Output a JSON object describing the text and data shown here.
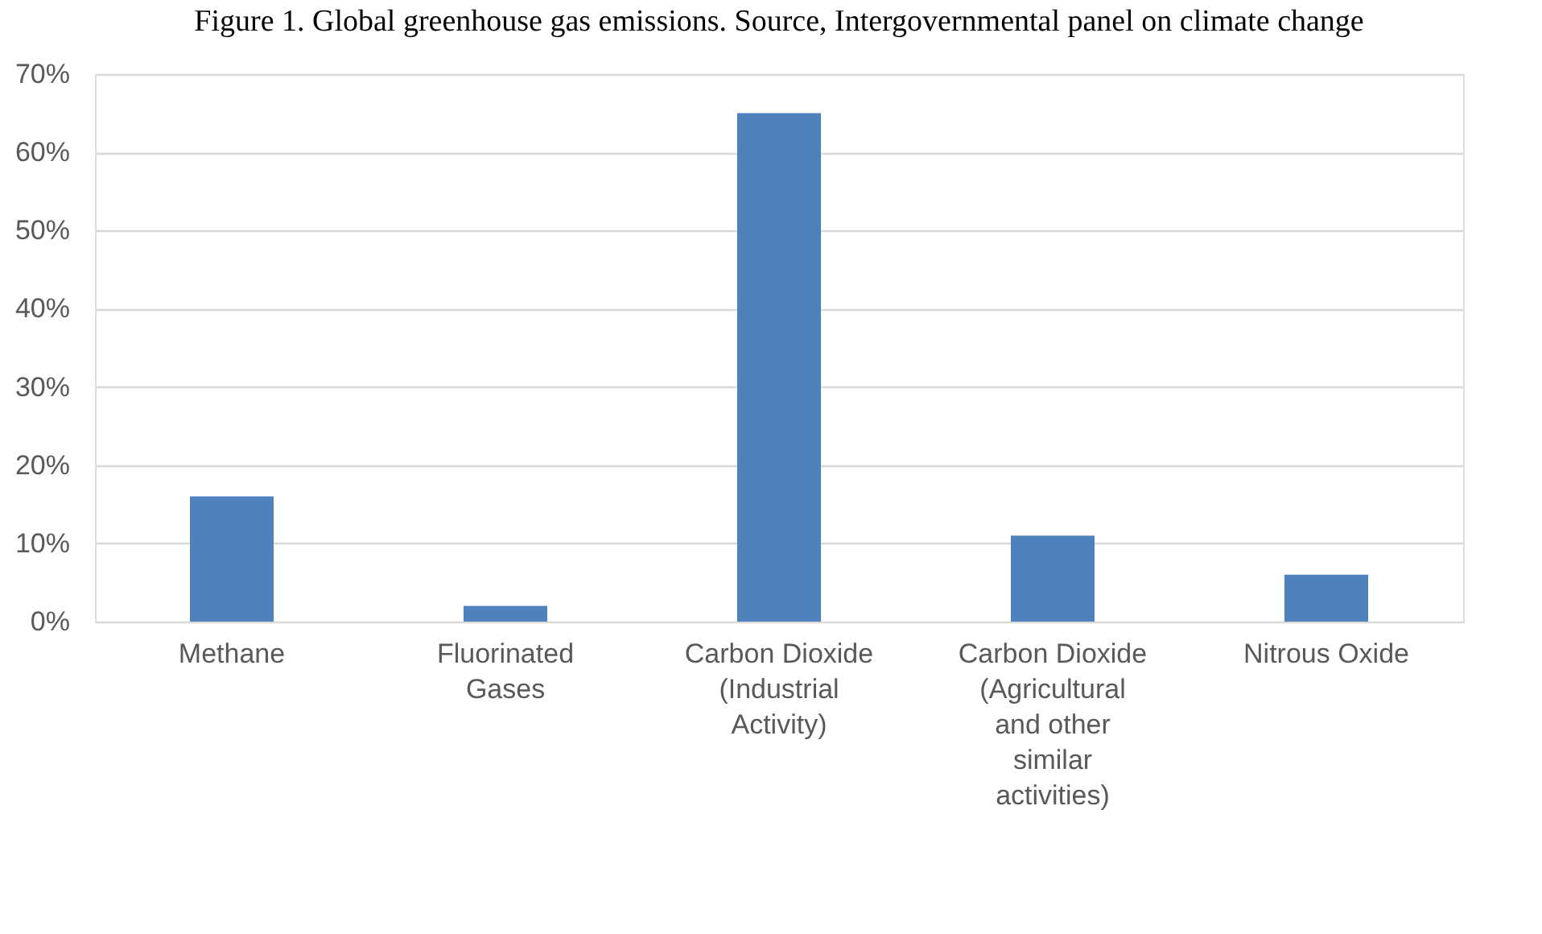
{
  "chart_data": {
    "type": "bar",
    "title": "Figure 1. Global greenhouse gas emissions. Source, Intergovernmental panel on climate change",
    "categories": [
      "Methane",
      "Fluorinated Gases",
      "Carbon Dioxide (Industrial Activity)",
      "Carbon Dioxide (Agricultural and other similar activities)",
      "Nitrous Oxide"
    ],
    "values": [
      16,
      2,
      65,
      11,
      6
    ],
    "color": "#4f81bd",
    "ylim": [
      0,
      70
    ],
    "yticks": [
      {
        "value": 0,
        "label": "0%"
      },
      {
        "value": 10,
        "label": "10%"
      },
      {
        "value": 20,
        "label": "20%"
      },
      {
        "value": 30,
        "label": "30%"
      },
      {
        "value": 40,
        "label": "40%"
      },
      {
        "value": 50,
        "label": "50%"
      },
      {
        "value": 60,
        "label": "60%"
      },
      {
        "value": 70,
        "label": "70%"
      }
    ],
    "grid": "y"
  }
}
